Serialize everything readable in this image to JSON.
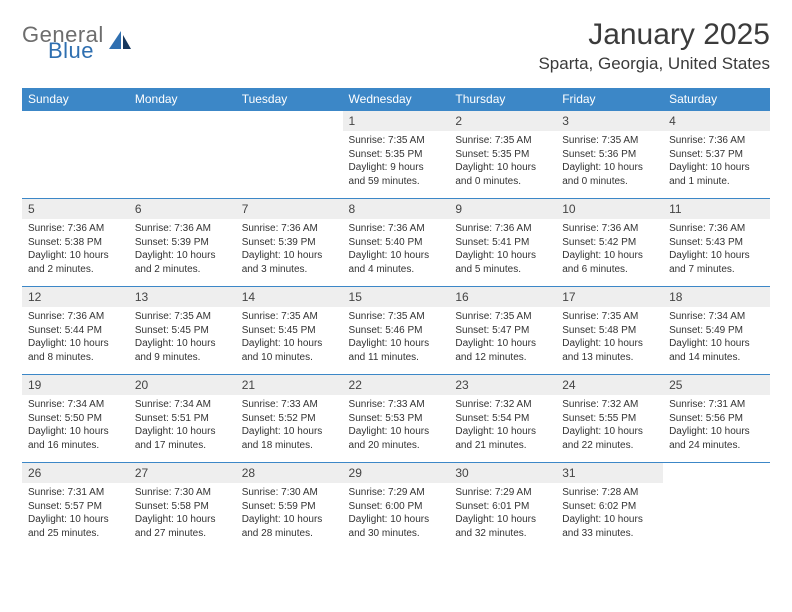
{
  "logo": {
    "word1": "General",
    "word2": "Blue"
  },
  "title": "January 2025",
  "location": "Sparta, Georgia, United States",
  "colors": {
    "header_bg": "#3c87c7",
    "header_text": "#ffffff",
    "daynum_bg": "#eeeeee",
    "rule": "#3c87c7",
    "text": "#333333",
    "logo_gray": "#6d6d6d",
    "logo_blue": "#2f6fb0",
    "background": "#ffffff"
  },
  "fonts": {
    "title_size_pt": 30,
    "location_size_pt": 17,
    "dow_size_pt": 12,
    "daynum_size_pt": 12,
    "body_size_pt": 10
  },
  "days_of_week": [
    "Sunday",
    "Monday",
    "Tuesday",
    "Wednesday",
    "Thursday",
    "Friday",
    "Saturday"
  ],
  "weeks": [
    [
      null,
      null,
      null,
      {
        "day": "1",
        "sunrise": "Sunrise: 7:35 AM",
        "sunset": "Sunset: 5:35 PM",
        "daylight1": "Daylight: 9 hours",
        "daylight2": "and 59 minutes."
      },
      {
        "day": "2",
        "sunrise": "Sunrise: 7:35 AM",
        "sunset": "Sunset: 5:35 PM",
        "daylight1": "Daylight: 10 hours",
        "daylight2": "and 0 minutes."
      },
      {
        "day": "3",
        "sunrise": "Sunrise: 7:35 AM",
        "sunset": "Sunset: 5:36 PM",
        "daylight1": "Daylight: 10 hours",
        "daylight2": "and 0 minutes."
      },
      {
        "day": "4",
        "sunrise": "Sunrise: 7:36 AM",
        "sunset": "Sunset: 5:37 PM",
        "daylight1": "Daylight: 10 hours",
        "daylight2": "and 1 minute."
      }
    ],
    [
      {
        "day": "5",
        "sunrise": "Sunrise: 7:36 AM",
        "sunset": "Sunset: 5:38 PM",
        "daylight1": "Daylight: 10 hours",
        "daylight2": "and 2 minutes."
      },
      {
        "day": "6",
        "sunrise": "Sunrise: 7:36 AM",
        "sunset": "Sunset: 5:39 PM",
        "daylight1": "Daylight: 10 hours",
        "daylight2": "and 2 minutes."
      },
      {
        "day": "7",
        "sunrise": "Sunrise: 7:36 AM",
        "sunset": "Sunset: 5:39 PM",
        "daylight1": "Daylight: 10 hours",
        "daylight2": "and 3 minutes."
      },
      {
        "day": "8",
        "sunrise": "Sunrise: 7:36 AM",
        "sunset": "Sunset: 5:40 PM",
        "daylight1": "Daylight: 10 hours",
        "daylight2": "and 4 minutes."
      },
      {
        "day": "9",
        "sunrise": "Sunrise: 7:36 AM",
        "sunset": "Sunset: 5:41 PM",
        "daylight1": "Daylight: 10 hours",
        "daylight2": "and 5 minutes."
      },
      {
        "day": "10",
        "sunrise": "Sunrise: 7:36 AM",
        "sunset": "Sunset: 5:42 PM",
        "daylight1": "Daylight: 10 hours",
        "daylight2": "and 6 minutes."
      },
      {
        "day": "11",
        "sunrise": "Sunrise: 7:36 AM",
        "sunset": "Sunset: 5:43 PM",
        "daylight1": "Daylight: 10 hours",
        "daylight2": "and 7 minutes."
      }
    ],
    [
      {
        "day": "12",
        "sunrise": "Sunrise: 7:36 AM",
        "sunset": "Sunset: 5:44 PM",
        "daylight1": "Daylight: 10 hours",
        "daylight2": "and 8 minutes."
      },
      {
        "day": "13",
        "sunrise": "Sunrise: 7:35 AM",
        "sunset": "Sunset: 5:45 PM",
        "daylight1": "Daylight: 10 hours",
        "daylight2": "and 9 minutes."
      },
      {
        "day": "14",
        "sunrise": "Sunrise: 7:35 AM",
        "sunset": "Sunset: 5:45 PM",
        "daylight1": "Daylight: 10 hours",
        "daylight2": "and 10 minutes."
      },
      {
        "day": "15",
        "sunrise": "Sunrise: 7:35 AM",
        "sunset": "Sunset: 5:46 PM",
        "daylight1": "Daylight: 10 hours",
        "daylight2": "and 11 minutes."
      },
      {
        "day": "16",
        "sunrise": "Sunrise: 7:35 AM",
        "sunset": "Sunset: 5:47 PM",
        "daylight1": "Daylight: 10 hours",
        "daylight2": "and 12 minutes."
      },
      {
        "day": "17",
        "sunrise": "Sunrise: 7:35 AM",
        "sunset": "Sunset: 5:48 PM",
        "daylight1": "Daylight: 10 hours",
        "daylight2": "and 13 minutes."
      },
      {
        "day": "18",
        "sunrise": "Sunrise: 7:34 AM",
        "sunset": "Sunset: 5:49 PM",
        "daylight1": "Daylight: 10 hours",
        "daylight2": "and 14 minutes."
      }
    ],
    [
      {
        "day": "19",
        "sunrise": "Sunrise: 7:34 AM",
        "sunset": "Sunset: 5:50 PM",
        "daylight1": "Daylight: 10 hours",
        "daylight2": "and 16 minutes."
      },
      {
        "day": "20",
        "sunrise": "Sunrise: 7:34 AM",
        "sunset": "Sunset: 5:51 PM",
        "daylight1": "Daylight: 10 hours",
        "daylight2": "and 17 minutes."
      },
      {
        "day": "21",
        "sunrise": "Sunrise: 7:33 AM",
        "sunset": "Sunset: 5:52 PM",
        "daylight1": "Daylight: 10 hours",
        "daylight2": "and 18 minutes."
      },
      {
        "day": "22",
        "sunrise": "Sunrise: 7:33 AM",
        "sunset": "Sunset: 5:53 PM",
        "daylight1": "Daylight: 10 hours",
        "daylight2": "and 20 minutes."
      },
      {
        "day": "23",
        "sunrise": "Sunrise: 7:32 AM",
        "sunset": "Sunset: 5:54 PM",
        "daylight1": "Daylight: 10 hours",
        "daylight2": "and 21 minutes."
      },
      {
        "day": "24",
        "sunrise": "Sunrise: 7:32 AM",
        "sunset": "Sunset: 5:55 PM",
        "daylight1": "Daylight: 10 hours",
        "daylight2": "and 22 minutes."
      },
      {
        "day": "25",
        "sunrise": "Sunrise: 7:31 AM",
        "sunset": "Sunset: 5:56 PM",
        "daylight1": "Daylight: 10 hours",
        "daylight2": "and 24 minutes."
      }
    ],
    [
      {
        "day": "26",
        "sunrise": "Sunrise: 7:31 AM",
        "sunset": "Sunset: 5:57 PM",
        "daylight1": "Daylight: 10 hours",
        "daylight2": "and 25 minutes."
      },
      {
        "day": "27",
        "sunrise": "Sunrise: 7:30 AM",
        "sunset": "Sunset: 5:58 PM",
        "daylight1": "Daylight: 10 hours",
        "daylight2": "and 27 minutes."
      },
      {
        "day": "28",
        "sunrise": "Sunrise: 7:30 AM",
        "sunset": "Sunset: 5:59 PM",
        "daylight1": "Daylight: 10 hours",
        "daylight2": "and 28 minutes."
      },
      {
        "day": "29",
        "sunrise": "Sunrise: 7:29 AM",
        "sunset": "Sunset: 6:00 PM",
        "daylight1": "Daylight: 10 hours",
        "daylight2": "and 30 minutes."
      },
      {
        "day": "30",
        "sunrise": "Sunrise: 7:29 AM",
        "sunset": "Sunset: 6:01 PM",
        "daylight1": "Daylight: 10 hours",
        "daylight2": "and 32 minutes."
      },
      {
        "day": "31",
        "sunrise": "Sunrise: 7:28 AM",
        "sunset": "Sunset: 6:02 PM",
        "daylight1": "Daylight: 10 hours",
        "daylight2": "and 33 minutes."
      },
      null
    ]
  ]
}
